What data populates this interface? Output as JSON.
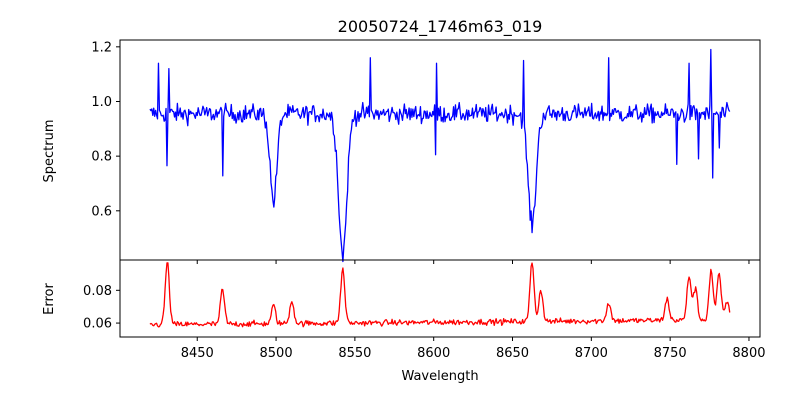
{
  "chart_data": [
    {
      "type": "line",
      "title": "20050724_1746m63_019",
      "xlabel": "",
      "ylabel": "Spectrum",
      "xlim": [
        8401,
        8807
      ],
      "ylim": [
        0.42,
        1.225
      ],
      "xticks": [
        8450,
        8500,
        8550,
        8600,
        8650,
        8700,
        8750,
        8800
      ],
      "yticks": [
        0.6,
        0.8,
        1.0,
        1.2
      ],
      "ytick_labels": [
        "0.6",
        "0.8",
        "1.0",
        "1.2"
      ],
      "series": [
        {
          "color": "#0000ff",
          "x_start": 8420,
          "x_end": 8788,
          "continuum": 0.955,
          "noise_amplitude": 0.055,
          "spikes": [
            {
              "x": 8425.5,
              "y": 1.14
            },
            {
              "x": 8431,
              "y": 0.765
            },
            {
              "x": 8432,
              "y": 1.12
            },
            {
              "x": 8466,
              "y": 0.728
            },
            {
              "x": 8560,
              "y": 1.16
            },
            {
              "x": 8601,
              "y": 0.805
            },
            {
              "x": 8602,
              "y": 1.14
            },
            {
              "x": 8657,
              "y": 1.15
            },
            {
              "x": 8711,
              "y": 1.16
            },
            {
              "x": 8754,
              "y": 0.77
            },
            {
              "x": 8762,
              "y": 1.14
            },
            {
              "x": 8768,
              "y": 0.79
            },
            {
              "x": 8776,
              "y": 1.19
            },
            {
              "x": 8776.8,
              "y": 0.72
            },
            {
              "x": 8781,
              "y": 0.83
            }
          ],
          "absorption_lines": [
            {
              "center": 8498.4,
              "min": 0.635,
              "width": 2.2
            },
            {
              "center": 8542.3,
              "min": 0.44,
              "width": 2.6
            },
            {
              "center": 8662.4,
              "min": 0.545,
              "width": 2.5
            }
          ]
        }
      ]
    },
    {
      "type": "line",
      "title": "",
      "xlabel": "Wavelength",
      "ylabel": "Error",
      "xlim": [
        8401,
        8807
      ],
      "ylim": [
        0.0515,
        0.0985
      ],
      "xticks": [
        8450,
        8500,
        8550,
        8600,
        8650,
        8700,
        8750,
        8800
      ],
      "xtick_labels": [
        "8450",
        "8500",
        "8550",
        "8600",
        "8650",
        "8700",
        "8750",
        "8800"
      ],
      "yticks": [
        0.06,
        0.08
      ],
      "ytick_labels": [
        "0.06",
        "0.08"
      ],
      "series": [
        {
          "color": "#ff0000",
          "x_start": 8420,
          "x_end": 8788,
          "baseline_start": 0.059,
          "baseline_end": 0.062,
          "noise_amplitude": 0.0025,
          "peaks": [
            {
              "x": 8431,
              "y": 0.097
            },
            {
              "x": 8466,
              "y": 0.08
            },
            {
              "x": 8498.4,
              "y": 0.07
            },
            {
              "x": 8510,
              "y": 0.073
            },
            {
              "x": 8542.3,
              "y": 0.092
            },
            {
              "x": 8662.4,
              "y": 0.095
            },
            {
              "x": 8668,
              "y": 0.078
            },
            {
              "x": 8711,
              "y": 0.07
            },
            {
              "x": 8748,
              "y": 0.072
            },
            {
              "x": 8762,
              "y": 0.086
            },
            {
              "x": 8766,
              "y": 0.078
            },
            {
              "x": 8776,
              "y": 0.089
            },
            {
              "x": 8781,
              "y": 0.087
            },
            {
              "x": 8786,
              "y": 0.07
            }
          ]
        }
      ]
    }
  ]
}
